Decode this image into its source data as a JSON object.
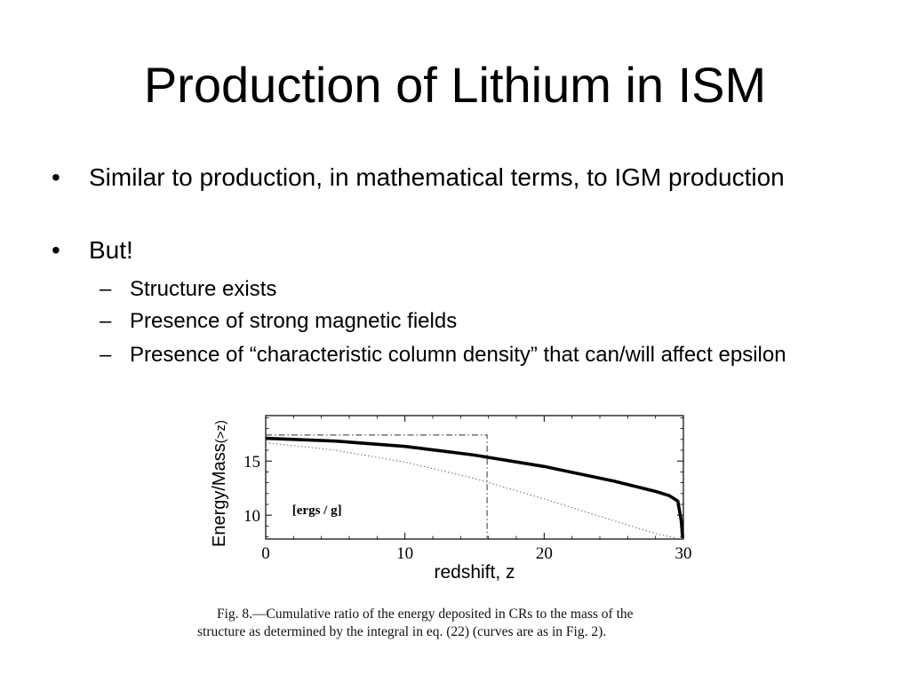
{
  "slide": {
    "title": "Production of Lithium in ISM",
    "bullets": [
      {
        "marker": "•",
        "text": "Similar to production, in mathematical terms, to IGM production"
      },
      {
        "marker": "•",
        "text": "But!"
      }
    ],
    "subbullets": [
      {
        "marker": "–",
        "text": "Structure exists"
      },
      {
        "marker": "–",
        "text": "Presence of strong magnetic fields"
      },
      {
        "marker": "–",
        "text": "Presence of “characteristic column density” that can/will affect epsilon"
      }
    ],
    "caption": {
      "line1": "Fig. 8.—Cumulative ratio of the energy deposited in CRs to the mass of the",
      "line2": "structure as determined by the integral in eq. (22) (curves are as in Fig. 2)."
    }
  },
  "chart_data": {
    "type": "line",
    "xlabel": "redshift, z",
    "ylabel": "Energy/Mass",
    "ylabel_sub": "(>z)",
    "annotation": "[ergs / g]",
    "xlim": [
      0,
      30
    ],
    "ylim": [
      7.8,
      19.2
    ],
    "xticks": [
      0,
      10,
      20,
      30
    ],
    "yticks": [
      10,
      15
    ],
    "grid": false,
    "colors": {
      "axis": "#000000",
      "thick": "#000000",
      "dashdot": "#555555",
      "dotted": "#777777"
    },
    "series": [
      {
        "style": "thick-solid",
        "x": [
          0,
          5,
          10,
          15,
          20,
          25,
          28,
          29,
          29.6,
          29.85,
          29.95
        ],
        "y": [
          17.1,
          16.85,
          16.35,
          15.55,
          14.5,
          13.15,
          12.2,
          11.8,
          11.3,
          9.5,
          7.9
        ]
      },
      {
        "style": "dashdot",
        "x": [
          0,
          15.9,
          15.9
        ],
        "y": [
          17.4,
          17.4,
          7.8
        ]
      },
      {
        "style": "dotted",
        "x": [
          0,
          5,
          10,
          15,
          20,
          25,
          28,
          29.5
        ],
        "y": [
          16.7,
          16.0,
          14.9,
          13.4,
          11.5,
          9.5,
          8.3,
          7.9
        ]
      }
    ]
  }
}
